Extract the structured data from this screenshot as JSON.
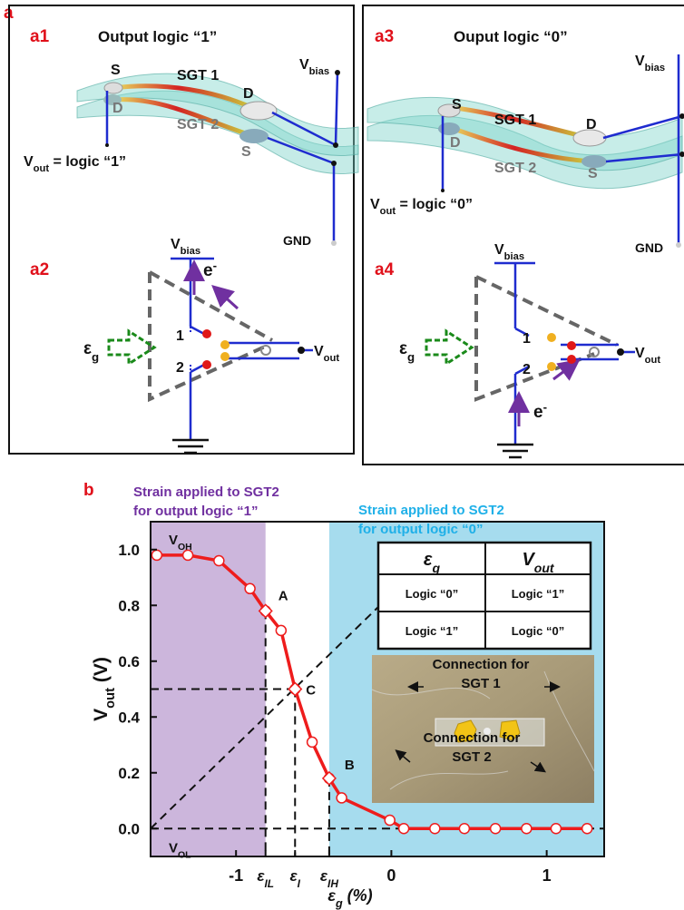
{
  "figure_label": "a",
  "panels": {
    "a1": {
      "label": "a1",
      "title": "Output logic “1”",
      "labels": [
        "S",
        "SGT 1",
        "D",
        "SGT 2",
        "S",
        "D",
        "Vbias",
        "Vout = logic “1”",
        "GND"
      ]
    },
    "a2": {
      "label": "a2",
      "labels": [
        "Vbias",
        "e-",
        "1",
        "2",
        "εg",
        "Vout"
      ]
    },
    "a3": {
      "label": "a3",
      "title": "Ouput logic “0”",
      "labels": [
        "S",
        "SGT 1",
        "D",
        "SGT 2",
        "S",
        "D",
        "Vbias",
        "Vout = logic “0”",
        "GND"
      ]
    },
    "a4": {
      "label": "a4",
      "labels": [
        "Vbias",
        "e-",
        "1",
        "2",
        "εg",
        "Vout"
      ]
    }
  },
  "chart_data": {
    "type": "line",
    "panel_label": "b",
    "x_label": "εg (%)",
    "y_label": "Vout (V)",
    "xlim": [
      -1.55,
      1.37
    ],
    "ylim": [
      -0.1,
      1.1
    ],
    "xticks": [
      -1,
      0,
      1,
      {
        "value": -0.81,
        "label": "εIL"
      },
      {
        "value": -0.62,
        "label": "εI"
      },
      {
        "value": -0.4,
        "label": "εIH"
      }
    ],
    "yticks": [
      {
        "value": 0,
        "label": "0.0"
      },
      0.2,
      0.4,
      0.6,
      0.8,
      {
        "value": 1,
        "label": "1.0"
      }
    ],
    "x": [
      -1.51,
      -1.31,
      -1.11,
      -0.91,
      -0.81,
      -0.71,
      -0.62,
      -0.51,
      -0.4,
      -0.32,
      -0.01,
      0.08,
      0.28,
      0.47,
      0.67,
      0.87,
      1.06,
      1.26
    ],
    "series": [
      {
        "name": "Vout",
        "color": "#ee1c1c",
        "values": [
          0.98,
          0.98,
          0.96,
          0.86,
          0.78,
          0.71,
          0.5,
          0.31,
          0.18,
          0.11,
          0.03,
          0,
          0,
          0,
          0,
          0,
          0,
          0
        ]
      }
    ],
    "regions": [
      {
        "label": [
          "Strain applied to SGT2",
          "for output logic “1”"
        ],
        "x": [
          -1.55,
          -0.81
        ],
        "color": "#ccb6dc",
        "label_color": "#7030a0"
      },
      {
        "label": [
          "Strain applied to SGT2",
          "for output logic “0”"
        ],
        "x": [
          -0.4,
          1.37
        ],
        "color": "#a6dcee",
        "label_color": "#1fb0e8"
      }
    ],
    "annotations": [
      {
        "text": "A",
        "x": -0.81,
        "y": 0.78
      },
      {
        "text": "C",
        "x": -0.62,
        "y": 0.5
      },
      {
        "text": "B",
        "x": -0.4,
        "y": 0.18
      }
    ],
    "level_labels": [
      {
        "text": "VOH",
        "value": 0.98
      },
      {
        "text": "VOL",
        "value": 0
      }
    ],
    "reference_line": {
      "x": [
        -1.55,
        0
      ],
      "y": [
        0,
        0.84
      ]
    },
    "inset_table": {
      "header": [
        "εg",
        "Vout"
      ],
      "rows": [
        [
          "Logic “0”",
          "Logic “1”"
        ],
        [
          "Logic “1”",
          "Logic “0”"
        ]
      ]
    },
    "photo_labels": [
      [
        "Connection for",
        "SGT 1"
      ],
      [
        "Connection for",
        "SGT 2"
      ]
    ]
  }
}
